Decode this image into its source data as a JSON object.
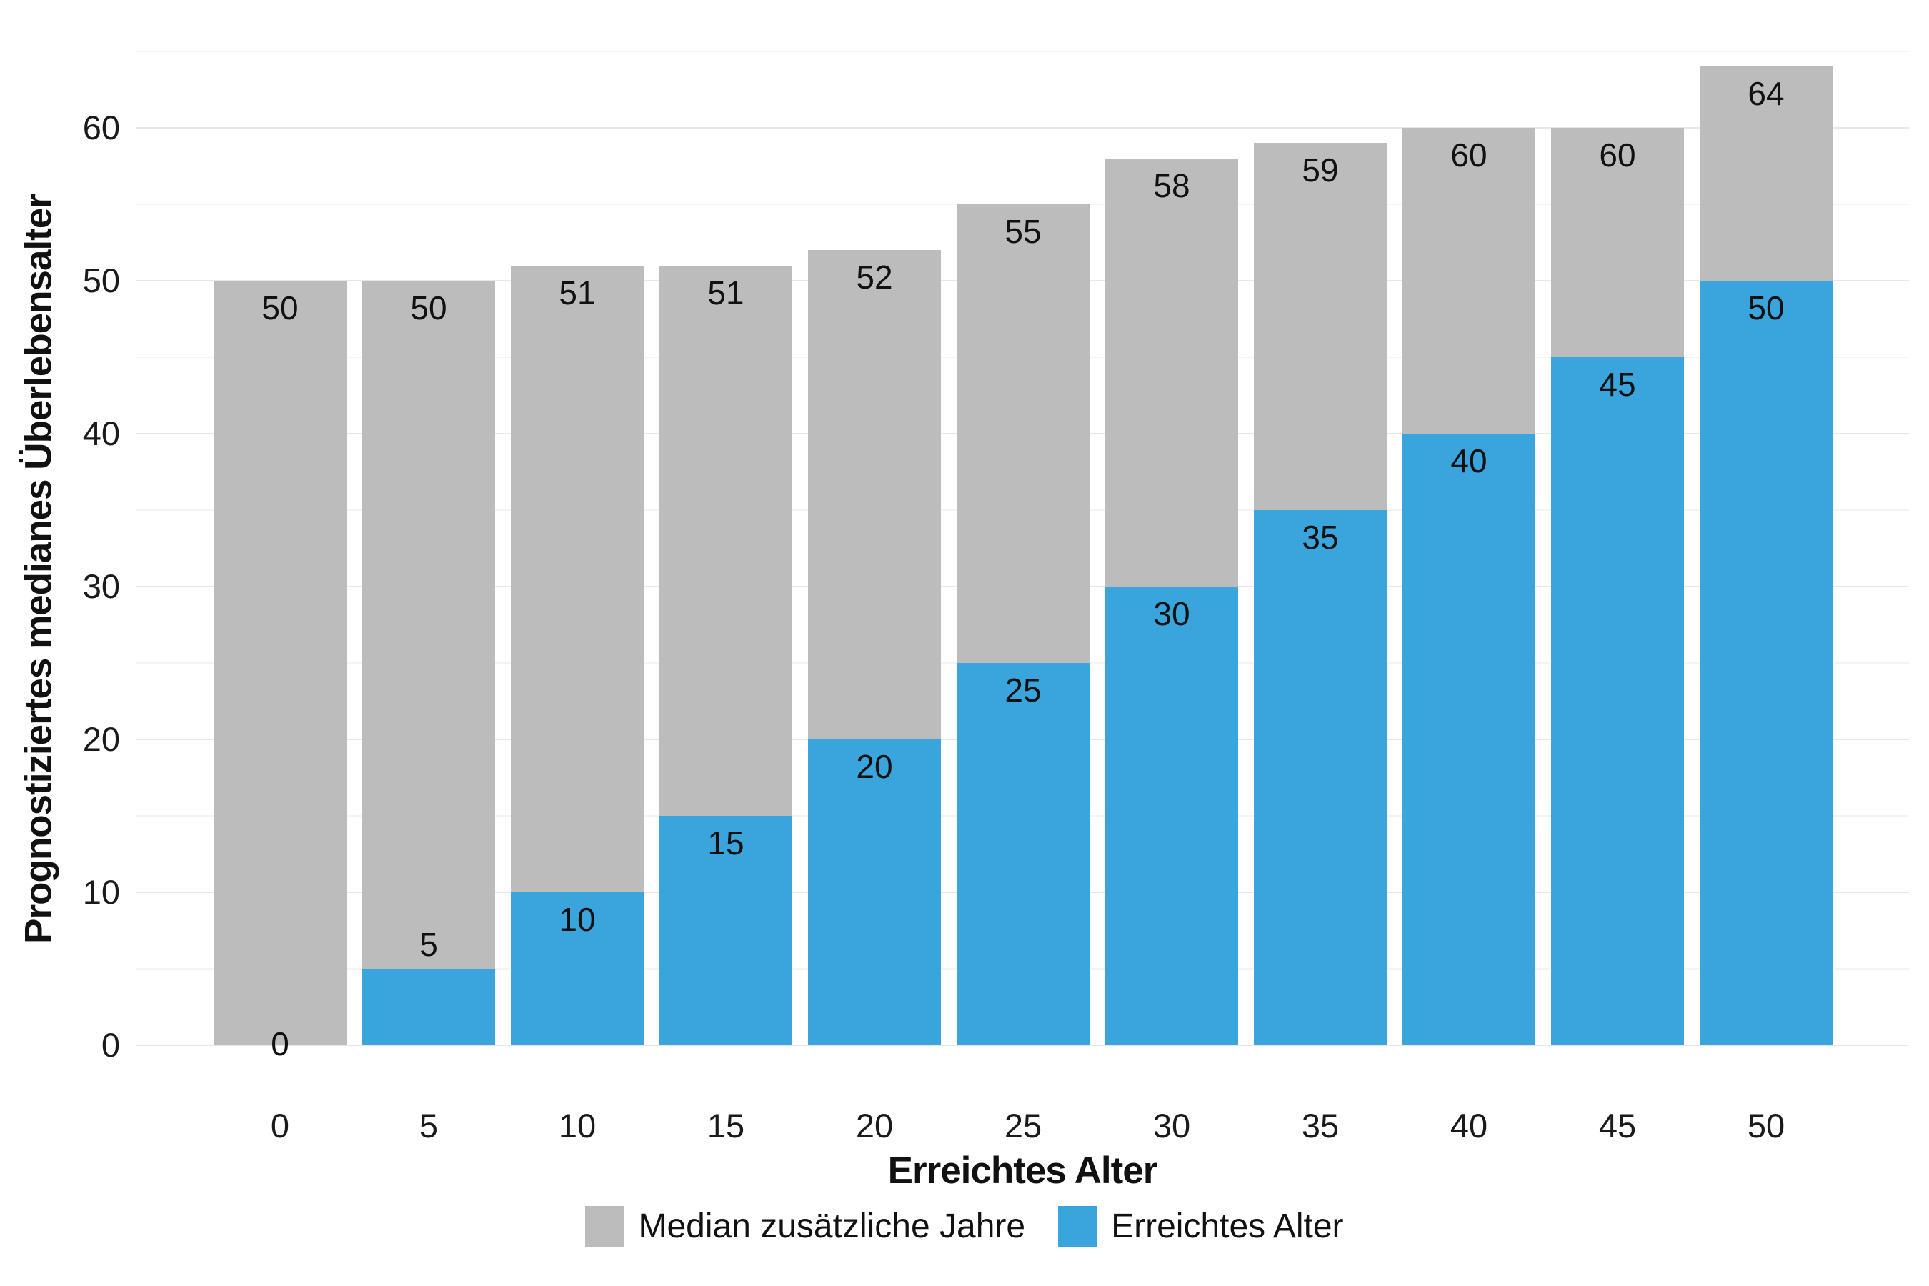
{
  "chart_data": {
    "type": "bar",
    "stacked": true,
    "title": "",
    "xlabel": "Erreichtes Alter",
    "ylabel": "Prognostiziertes medianes Überlebensalter",
    "categories": [
      0,
      5,
      10,
      15,
      20,
      25,
      30,
      35,
      40,
      45,
      50
    ],
    "series": [
      {
        "name": "Erreichtes Alter",
        "color": "#3aa5dc",
        "values": [
          0,
          5,
          10,
          15,
          20,
          25,
          30,
          35,
          40,
          45,
          50
        ]
      },
      {
        "name": "Median zusätzliche Jahre",
        "color": "#bcbcbc",
        "values": [
          50,
          45,
          41,
          36,
          32,
          30,
          28,
          24,
          20,
          15,
          14
        ]
      }
    ],
    "totals": [
      50,
      50,
      51,
      51,
      52,
      55,
      58,
      59,
      60,
      60,
      64
    ],
    "bar_top_labels": [
      "50",
      "50",
      "51",
      "51",
      "52",
      "55",
      "58",
      "59",
      "60",
      "60",
      "64"
    ],
    "bar_blue_labels": [
      "0",
      "5",
      "10",
      "15",
      "20",
      "25",
      "30",
      "35",
      "40",
      "45",
      "50"
    ],
    "ylim": [
      0,
      65
    ],
    "yticks": [
      0,
      10,
      20,
      30,
      40,
      50,
      60
    ],
    "gridline_step": 5,
    "grid": "on",
    "legend": {
      "position": "bottom",
      "entries": [
        {
          "label": "Median zusätzliche Jahre",
          "color": "#bcbcbc"
        },
        {
          "label": "Erreichtes Alter",
          "color": "#3aa5dc"
        }
      ]
    },
    "colors": {
      "blue": "#3aa5dc",
      "gray": "#bcbcbc",
      "major_gridline": "#e7e7e7",
      "minor_gridline": "#f4f4f4",
      "text": "#111111"
    }
  }
}
